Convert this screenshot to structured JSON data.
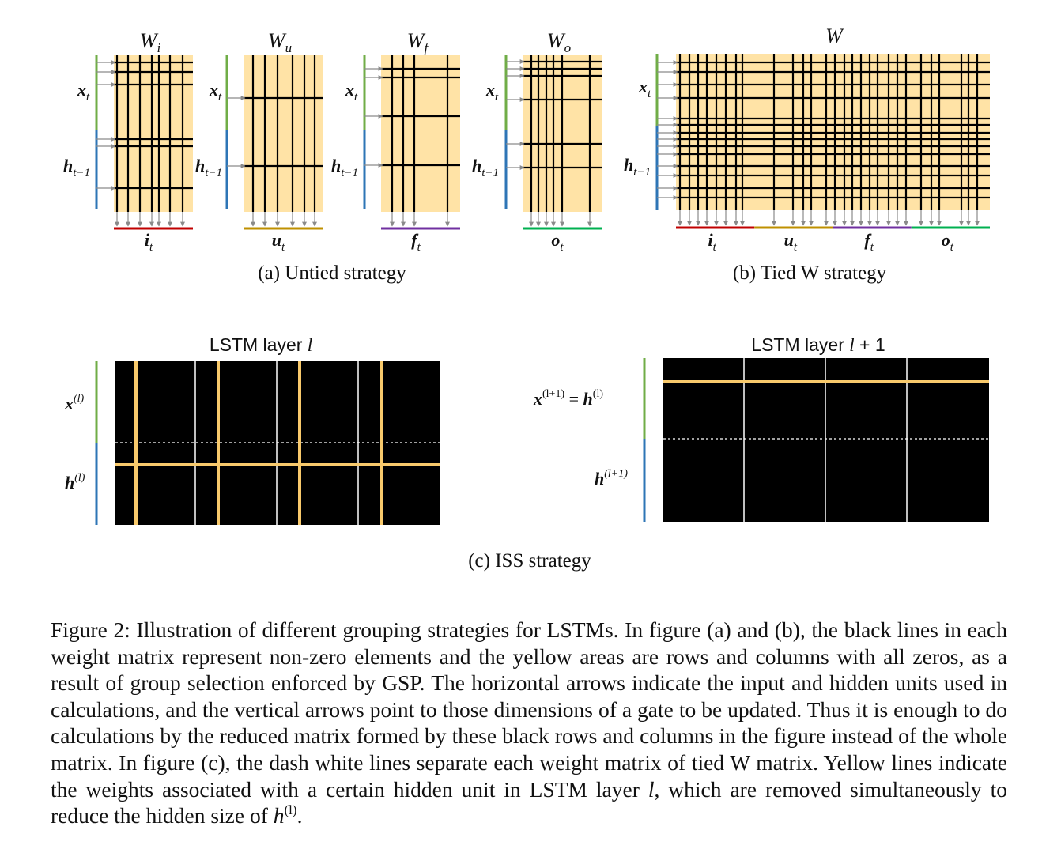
{
  "colors": {
    "zero_area": "#FFE3A6",
    "line": "#000000",
    "arrow": "#8a8a8a",
    "input_bar": "#70AD47",
    "hidden_bar": "#2E75B6",
    "gate_i": "#C00000",
    "gate_u": "#BF9000",
    "gate_f": "#7030A0",
    "gate_o": "#00B050",
    "iss_matrix": "#000000",
    "iss_removed_line": "#F8C96B",
    "iss_separator": "#ffffff"
  },
  "panel_a": {
    "caption": "(a)  Untied strategy",
    "label_x": "x",
    "label_x_sub": "t",
    "label_h": "h",
    "label_h_sub": "t−1",
    "matrices": [
      {
        "name": "W",
        "sub": "i",
        "gate": "i",
        "gate_sub": "t"
      },
      {
        "name": "W",
        "sub": "u",
        "gate": "u",
        "gate_sub": "t"
      },
      {
        "name": "W",
        "sub": "f",
        "gate": "f",
        "gate_sub": "t"
      },
      {
        "name": "W",
        "sub": "o",
        "gate": "o",
        "gate_sub": "t"
      }
    ]
  },
  "panel_b": {
    "caption": "(b)  Tied W strategy",
    "title": "W",
    "label_x": "x",
    "label_x_sub": "t",
    "label_h": "h",
    "label_h_sub": "t−1",
    "gates": [
      {
        "name": "i",
        "sub": "t"
      },
      {
        "name": "u",
        "sub": "t"
      },
      {
        "name": "f",
        "sub": "t"
      },
      {
        "name": "o",
        "sub": "t"
      }
    ]
  },
  "panel_c": {
    "caption": "(c)  ISS strategy",
    "left_title": "LSTM layer ",
    "left_title_var": "l",
    "right_title": "LSTM layer ",
    "right_title_var": "l",
    "right_title_suffix": " + 1",
    "left_label_x": "x",
    "left_label_x_sup": "(l)",
    "left_label_h": "h",
    "left_label_h_sup": "(l)",
    "right_label_x": "x",
    "right_label_x_sup": "(l+1)",
    "right_label_eq": " = ",
    "right_label_h": "h",
    "right_label_h_sup": "(l)",
    "right_label_hn": "h",
    "right_label_hn_sup": "(l+1)"
  },
  "caption": {
    "part1": "Figure 2: Illustration of different grouping strategies for LSTMs. In figure (a) and (b), the black lines in each weight matrix represent non-zero elements and the yellow areas are rows and columns with all zeros, as a result of group selection enforced by GSP. The horizontal arrows indicate the input and hidden units used in calculations, and the vertical arrows point to those dimensions of a gate to be updated. Thus it is enough to do calculations by the reduced matrix formed by these black rows and columns in the figure instead of the whole matrix. In figure (c), the dash white lines separate each weight matrix of tied W matrix. Yellow lines indicate the weights associated with a certain hidden unit in LSTM layer ",
    "var_l": "l",
    "part2": ", which are removed simultaneously to reduce the hidden size of ",
    "var_h": "h",
    "var_h_sup": "(l)",
    "part3": "."
  }
}
